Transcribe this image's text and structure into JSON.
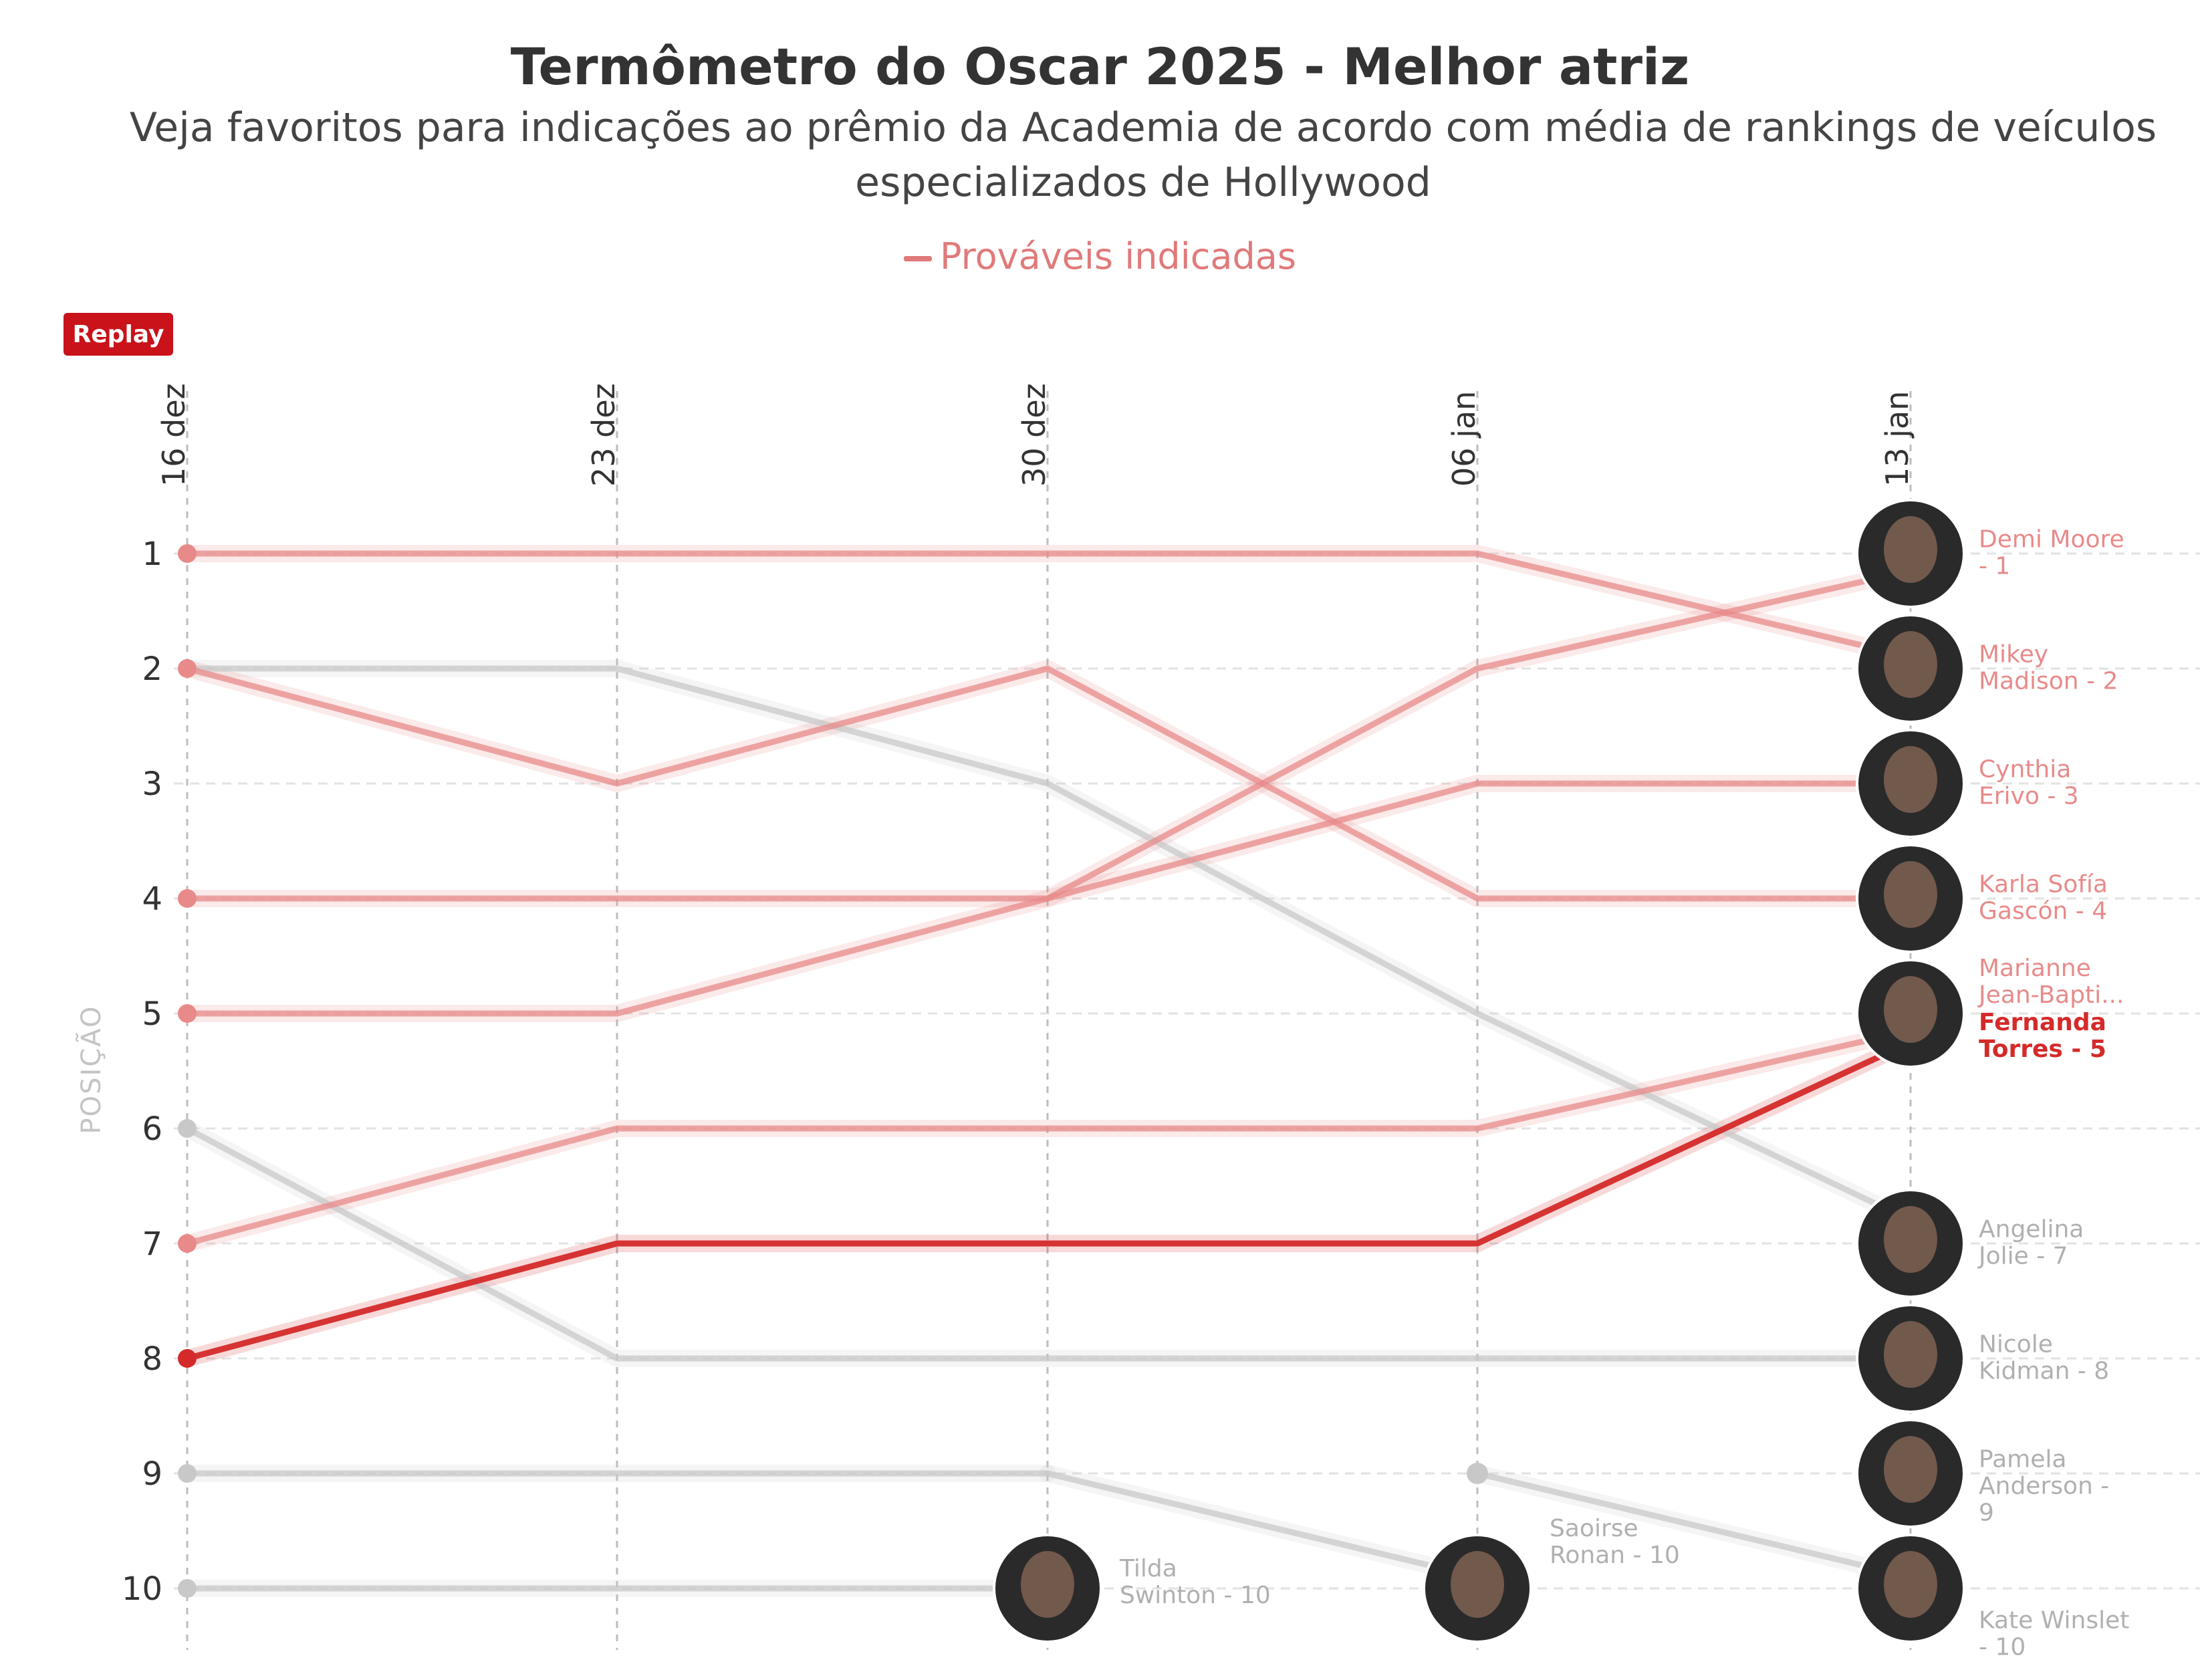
{
  "chart_data": {
    "type": "line",
    "title": "Termômetro do Oscar 2025 - Melhor atriz",
    "subtitle": "Veja favoritos para indicações ao prêmio da Academia de acordo com média de rankings de veículos especializados de Hollywood",
    "ylabel": "POSIÇÃO",
    "xlabel": "",
    "x": [
      "16 dez",
      "23 dez",
      "30 dez",
      "06 jan",
      "13 jan"
    ],
    "y_ticks": [
      "1",
      "2",
      "3",
      "4",
      "5",
      "6",
      "7",
      "8",
      "9",
      "10"
    ],
    "ylim": [
      1,
      10
    ],
    "y_reversed": true,
    "grid": true,
    "legend": {
      "position": "top-center",
      "entries": [
        "Prováveis indicadas"
      ]
    },
    "colors": {
      "nominee": "#e88a8a",
      "highlight": "#d42a2a",
      "other": "#c8c8c8",
      "label_other": "#b0b0b0",
      "button": "#c9121a"
    },
    "series": [
      {
        "name": "Demi Moore",
        "label": "Demi Moore - 1",
        "group": "nominee",
        "values": [
          5,
          5,
          4,
          2,
          1.15
        ]
      },
      {
        "name": "Mikey Madison",
        "label": "Mikey Madison - 2",
        "group": "nominee",
        "values": [
          1,
          1,
          1,
          1,
          1.9
        ]
      },
      {
        "name": "Cynthia Erivo",
        "label": "Cynthia Erivo - 3",
        "group": "nominee",
        "values": [
          4,
          4,
          4,
          3,
          3
        ]
      },
      {
        "name": "Karla Sofía Gascón",
        "label": "Karla Sofía Gascón - 4",
        "group": "nominee",
        "values": [
          2,
          3,
          2,
          4,
          4
        ]
      },
      {
        "name": "Marianne Jean-Baptiste",
        "label": "Marianne Jean-Bapti...",
        "group": "nominee",
        "values": [
          7,
          6,
          6,
          6,
          5.15
        ]
      },
      {
        "name": "Fernanda Torres",
        "label": "Fernanda Torres - 5",
        "group": "highlight",
        "values": [
          8,
          7,
          7,
          7,
          5.25
        ]
      },
      {
        "name": "Angelina Jolie",
        "label": "Angelina Jolie - 7",
        "group": "other",
        "values": [
          2,
          2,
          3,
          5,
          6.8
        ]
      },
      {
        "name": "Nicole Kidman",
        "label": "Nicole Kidman - 8",
        "group": "other",
        "values": [
          6,
          8,
          8,
          8,
          8
        ]
      },
      {
        "name": "Kate Winslet",
        "label": "Kate Winslet - 10",
        "group": "other",
        "values": [
          9,
          9,
          9,
          null,
          9.9
        ]
      },
      {
        "name": "Pamela Anderson",
        "label": "Pamela Anderson - 9",
        "group": "other",
        "values": [
          null,
          null,
          null,
          9,
          9.9
        ]
      },
      {
        "name": "Tilda Swinton",
        "label": "Tilda Swinton - 10",
        "group": "other",
        "values": [
          10,
          10,
          10,
          null,
          null
        ]
      },
      {
        "name": "Saoirse Ronan",
        "label": "Saoirse Ronan - 10",
        "group": "other",
        "values": [
          null,
          null,
          9,
          9.9,
          null
        ]
      }
    ],
    "end_labels": [
      {
        "series": "Demi Moore",
        "lines": [
          "Demi Moore",
          "- 1"
        ],
        "y": 1.05,
        "avatar_y": 1
      },
      {
        "series": "Mikey Madison",
        "lines": [
          "Mikey",
          "Madison - 2"
        ],
        "y": 2.05,
        "avatar_y": 2
      },
      {
        "series": "Cynthia Erivo",
        "lines": [
          "Cynthia",
          "Erivo - 3"
        ],
        "y": 3.05,
        "avatar_y": 3
      },
      {
        "series": "Karla Sofía Gascón",
        "lines": [
          "Karla Sofía",
          "Gascón - 4"
        ],
        "y": 4.05,
        "avatar_y": 4
      },
      {
        "series": "Marianne Jean-Baptiste",
        "lines": [
          "Marianne",
          "Jean-Bapti..."
        ],
        "y": 4.78,
        "avatar_y": 5
      },
      {
        "series": "Fernanda Torres",
        "lines": [
          "Fernanda",
          "Torres - 5"
        ],
        "y": 5.25,
        "avatar_y": null
      },
      {
        "series": "Angelina Jolie",
        "lines": [
          "Angelina",
          "Jolie - 7"
        ],
        "y": 7.05,
        "avatar_y": 7
      },
      {
        "series": "Nicole Kidman",
        "lines": [
          "Nicole",
          "Kidman - 8"
        ],
        "y": 8.05,
        "avatar_y": 8
      },
      {
        "series": "Pamela Anderson",
        "lines": [
          "Pamela",
          "Anderson -",
          "9"
        ],
        "y": 9.05,
        "avatar_y": 9
      },
      {
        "series": "Kate Winslet",
        "lines": [
          "Kate Winslet",
          "- 10"
        ],
        "y": 10.45,
        "avatar_y": 10
      }
    ],
    "inline_labels": [
      {
        "series": "Tilda Swinton",
        "lines": [
          "Tilda",
          "Swinton - 10"
        ],
        "x": "30 dez",
        "y": 10
      },
      {
        "series": "Saoirse Ronan",
        "lines": [
          "Saoirse",
          "Ronan - 10"
        ],
        "x": "06 jan",
        "y": 9.65
      }
    ]
  },
  "controls": {
    "replay_label": "Replay"
  },
  "legend": {
    "label": "Prováveis indicadas"
  }
}
